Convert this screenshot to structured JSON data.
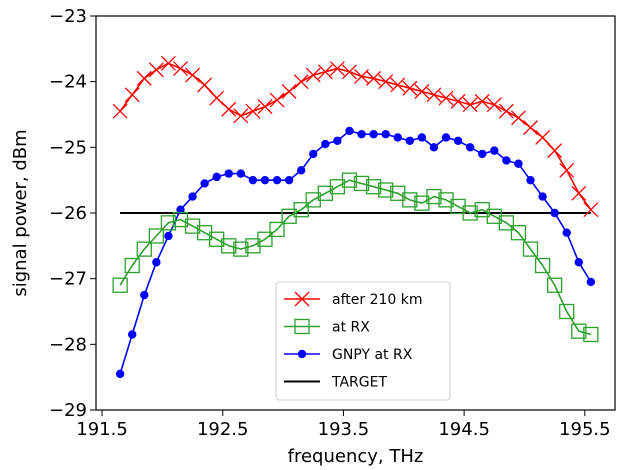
{
  "chart_data": {
    "type": "line",
    "xlabel": "frequency, THz",
    "ylabel": "signal power, dBm",
    "xlim": [
      191.45,
      195.75
    ],
    "ylim": [
      -29,
      -23
    ],
    "xticks": [
      191.5,
      192.5,
      193.5,
      194.5,
      195.5
    ],
    "yticks": [
      -29,
      -28,
      -27,
      -26,
      -25,
      -24,
      -23
    ],
    "xtick_labels": [
      "191.5",
      "192.5",
      "193.5",
      "194.5",
      "195.5"
    ],
    "ytick_labels": [
      "−29",
      "−28",
      "−27",
      "−26",
      "−25",
      "−24",
      "−23"
    ],
    "grid": false,
    "legend_position": "lower-center",
    "series": [
      {
        "name": "after 210 km",
        "color": "#ff0000",
        "marker": "x",
        "x": [
          191.65,
          191.75,
          191.85,
          191.95,
          192.05,
          192.15,
          192.25,
          192.35,
          192.45,
          192.55,
          192.65,
          192.75,
          192.85,
          192.95,
          193.05,
          193.15,
          193.25,
          193.35,
          193.45,
          193.55,
          193.65,
          193.75,
          193.85,
          193.95,
          194.05,
          194.15,
          194.25,
          194.35,
          194.45,
          194.55,
          194.65,
          194.75,
          194.85,
          194.95,
          195.05,
          195.15,
          195.25,
          195.35,
          195.45,
          195.55
        ],
        "y": [
          -24.45,
          -24.2,
          -23.95,
          -23.82,
          -23.72,
          -23.8,
          -23.9,
          -24.05,
          -24.25,
          -24.42,
          -24.52,
          -24.45,
          -24.38,
          -24.28,
          -24.15,
          -24.0,
          -23.9,
          -23.85,
          -23.8,
          -23.85,
          -23.92,
          -23.95,
          -24.0,
          -24.05,
          -24.1,
          -24.15,
          -24.2,
          -24.25,
          -24.3,
          -24.35,
          -24.3,
          -24.35,
          -24.45,
          -24.55,
          -24.7,
          -24.85,
          -25.05,
          -25.35,
          -25.7,
          -25.95
        ]
      },
      {
        "name": "at RX",
        "color": "#2ca02c",
        "marker": "square-open",
        "x": [
          191.65,
          191.75,
          191.85,
          191.95,
          192.05,
          192.15,
          192.25,
          192.35,
          192.45,
          192.55,
          192.65,
          192.75,
          192.85,
          192.95,
          193.05,
          193.15,
          193.25,
          193.35,
          193.45,
          193.55,
          193.65,
          193.75,
          193.85,
          193.95,
          194.05,
          194.15,
          194.25,
          194.35,
          194.45,
          194.55,
          194.65,
          194.75,
          194.85,
          194.95,
          195.05,
          195.15,
          195.25,
          195.35,
          195.45,
          195.55
        ],
        "y": [
          -27.1,
          -26.8,
          -26.55,
          -26.35,
          -26.15,
          -26.1,
          -26.2,
          -26.3,
          -26.4,
          -26.5,
          -26.55,
          -26.5,
          -26.4,
          -26.25,
          -26.05,
          -25.95,
          -25.8,
          -25.7,
          -25.6,
          -25.5,
          -25.55,
          -25.6,
          -25.65,
          -25.7,
          -25.8,
          -25.85,
          -25.75,
          -25.8,
          -25.9,
          -26.0,
          -25.95,
          -26.05,
          -26.15,
          -26.3,
          -26.55,
          -26.8,
          -27.1,
          -27.5,
          -27.8,
          -27.85
        ]
      },
      {
        "name": "GNPY at RX",
        "color": "#0000ff",
        "marker": "dot",
        "x": [
          191.65,
          191.75,
          191.85,
          191.95,
          192.05,
          192.15,
          192.25,
          192.35,
          192.45,
          192.55,
          192.65,
          192.75,
          192.85,
          192.95,
          193.05,
          193.15,
          193.25,
          193.35,
          193.45,
          193.55,
          193.65,
          193.75,
          193.85,
          193.95,
          194.05,
          194.15,
          194.25,
          194.35,
          194.45,
          194.55,
          194.65,
          194.75,
          194.85,
          194.95,
          195.05,
          195.15,
          195.25,
          195.35,
          195.45,
          195.55
        ],
        "y": [
          -28.45,
          -27.85,
          -27.25,
          -26.75,
          -26.35,
          -25.95,
          -25.75,
          -25.55,
          -25.45,
          -25.4,
          -25.4,
          -25.5,
          -25.5,
          -25.5,
          -25.5,
          -25.35,
          -25.1,
          -24.95,
          -24.9,
          -24.75,
          -24.8,
          -24.8,
          -24.8,
          -24.85,
          -24.9,
          -24.85,
          -25.0,
          -24.85,
          -24.9,
          -25.0,
          -25.1,
          -25.05,
          -25.2,
          -25.25,
          -25.5,
          -25.75,
          -26.0,
          -26.3,
          -26.75,
          -27.05
        ]
      },
      {
        "name": "TARGET",
        "color": "#000000",
        "marker": "none",
        "x": [
          191.65,
          195.55
        ],
        "y": [
          -26.0,
          -26.0
        ]
      }
    ]
  }
}
